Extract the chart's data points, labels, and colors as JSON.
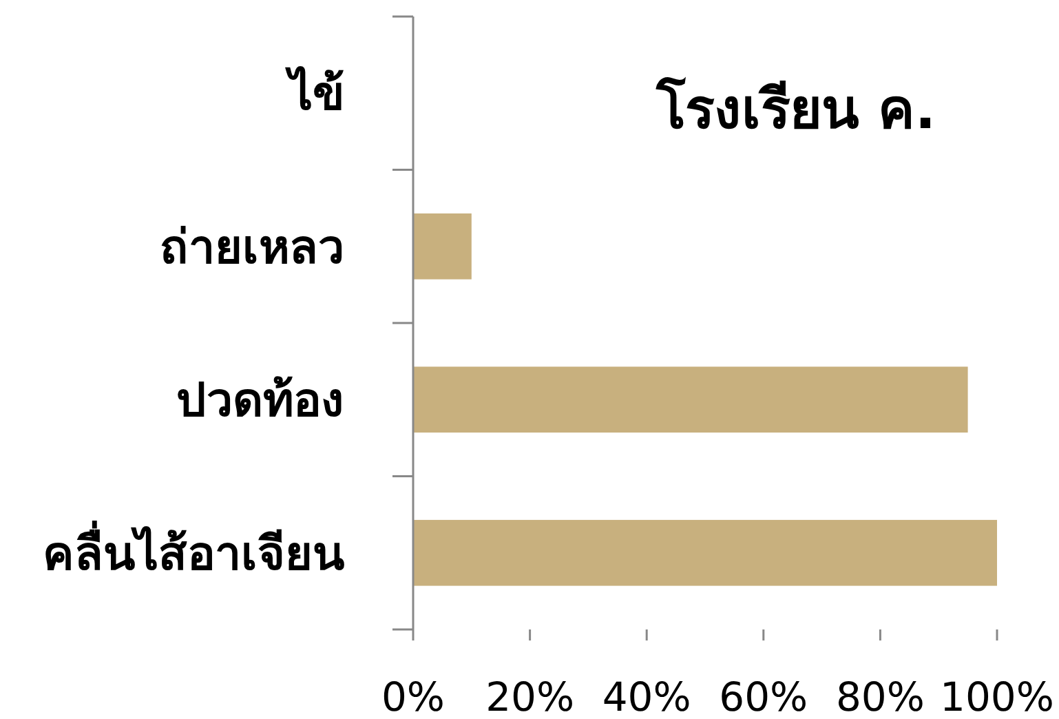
{
  "chart_data": {
    "type": "bar",
    "orientation": "horizontal",
    "title": "โรงเรียน ค.",
    "categories": [
      "ไข้",
      "ถ่ายเหลว",
      "ปวดท้อง",
      "คลื่นไส้อาเจียน"
    ],
    "values": [
      0,
      10,
      95,
      100
    ],
    "color": "#c8b07e",
    "xlim": [
      0,
      100
    ],
    "xticks": [
      {
        "value": 0,
        "label": "0%"
      },
      {
        "value": 20,
        "label": "20%"
      },
      {
        "value": 40,
        "label": "40%"
      },
      {
        "value": 60,
        "label": "60%"
      },
      {
        "value": 80,
        "label": "80%"
      },
      {
        "value": 100,
        "label": "100%"
      }
    ]
  }
}
